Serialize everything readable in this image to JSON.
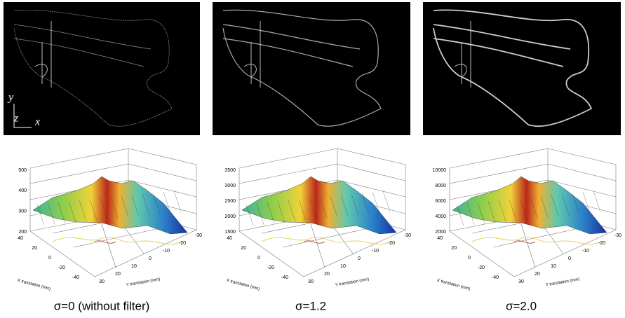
{
  "panels": [
    {
      "z_ticks": [
        500,
        400,
        300,
        200
      ],
      "x_ticks": [
        40,
        20,
        0,
        -20,
        -40
      ],
      "y_ticks": [
        30,
        20,
        10,
        0,
        -10,
        -20,
        -30
      ],
      "x_label": "X translation (mm)",
      "y_label": "Y translation (mm)",
      "caption": "σ=0 (without filter)"
    },
    {
      "z_ticks": [
        3500,
        3000,
        2500,
        2000,
        1500
      ],
      "x_ticks": [
        40,
        20,
        0,
        -20,
        -40
      ],
      "y_ticks": [
        30,
        20,
        10,
        0,
        -10,
        -20,
        -30
      ],
      "x_label": "X translation (mm)",
      "y_label": "Y translation (mm)",
      "caption": "σ=1.2"
    },
    {
      "z_ticks": [
        10000,
        8000,
        6000,
        4000,
        2000
      ],
      "x_ticks": [
        40,
        20,
        0,
        -20,
        -40
      ],
      "y_ticks": [
        30,
        20,
        10,
        0,
        -10,
        -20,
        -30
      ],
      "x_label": "X translation (mm)",
      "y_label": "Y translation (mm)",
      "caption": "σ=2.0"
    }
  ],
  "axis_labels": {
    "y": "y",
    "z": "z",
    "x": "x"
  }
}
